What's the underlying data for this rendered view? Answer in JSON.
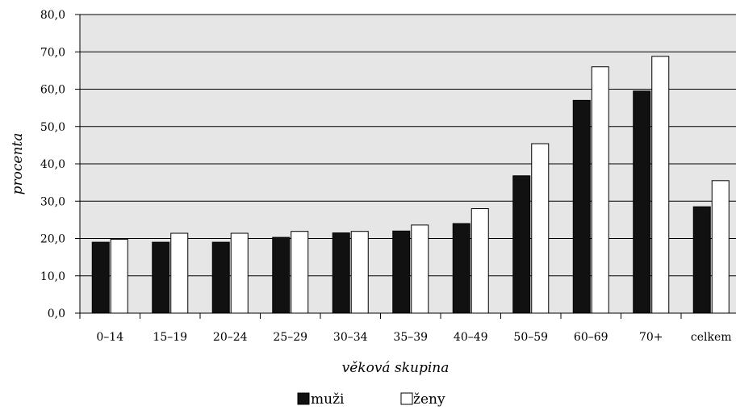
{
  "chart_data": {
    "type": "bar",
    "title": "",
    "xlabel": "věková skupina",
    "ylabel": "procenta",
    "categories": [
      "0–14",
      "15–19",
      "20–24",
      "25–29",
      "30–34",
      "35–39",
      "40–49",
      "50–59",
      "60–69",
      "70+",
      "celkem"
    ],
    "series": [
      {
        "name": "muži",
        "values": [
          19.0,
          19.0,
          19.0,
          20.3,
          21.5,
          22.0,
          24.0,
          36.8,
          57.0,
          59.5,
          28.5
        ]
      },
      {
        "name": "ženy",
        "values": [
          19.8,
          21.4,
          21.4,
          21.9,
          21.9,
          23.6,
          28.0,
          45.4,
          66.0,
          68.8,
          35.5
        ]
      }
    ],
    "ylim": [
      0,
      80
    ],
    "yticks": [
      "0,0",
      "10,0",
      "20,0",
      "30,0",
      "40,0",
      "50,0",
      "60,0",
      "70,0",
      "80,0"
    ],
    "grid": true,
    "legend_position": "bottom",
    "colors": {
      "muzi": "#111111",
      "zeny": "#ffffff",
      "plot_bg": "#e6e6e6"
    }
  }
}
